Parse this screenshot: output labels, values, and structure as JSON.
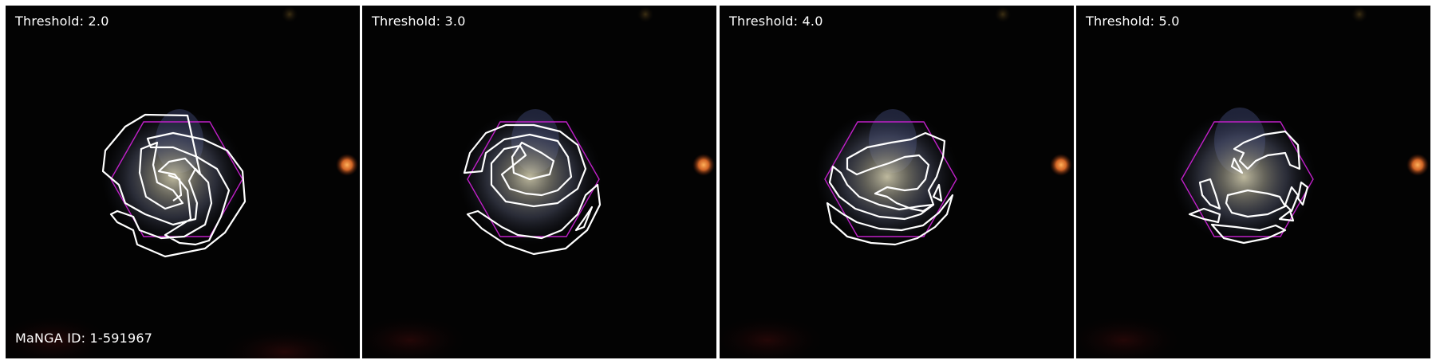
{
  "figure": {
    "manga_id_label": "MaNGA ID: 1-591967",
    "aperture_color": "#c020c8",
    "contour_color": "#ffffff",
    "panels": [
      {
        "threshold_label": "Threshold: 2.0"
      },
      {
        "threshold_label": "Threshold: 3.0"
      },
      {
        "threshold_label": "Threshold: 4.0"
      },
      {
        "threshold_label": "Threshold: 5.0"
      }
    ]
  }
}
